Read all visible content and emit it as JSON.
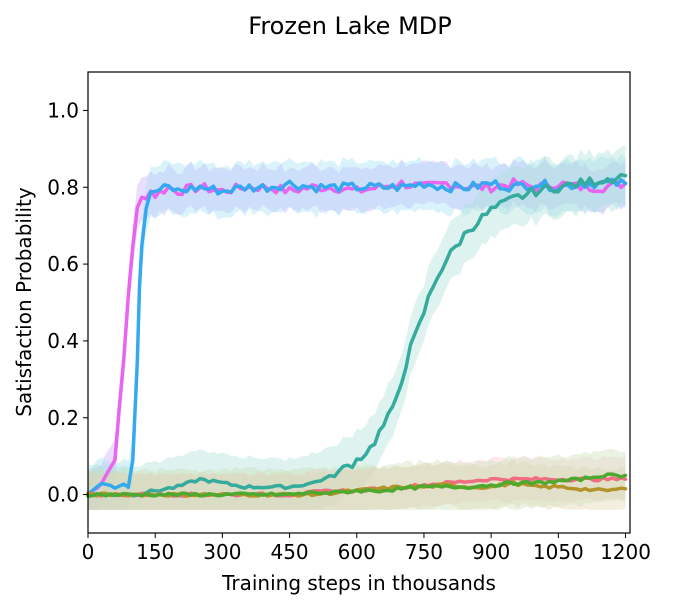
{
  "chart_data": {
    "type": "line",
    "title": "Frozen Lake MDP",
    "xlabel": "Training steps in thousands",
    "ylabel": "Satisfaction Probability",
    "xlim": [
      0,
      1210
    ],
    "ylim": [
      -0.1,
      1.1
    ],
    "xticks": [
      0,
      150,
      300,
      450,
      600,
      750,
      900,
      1050,
      1200
    ],
    "yticks": [
      0.0,
      0.2,
      0.4,
      0.6,
      0.8,
      1.0
    ],
    "ytick_labels": [
      "0.0",
      "0.2",
      "0.4",
      "0.6",
      "0.8",
      "1.0"
    ],
    "grid": false,
    "legend": "none",
    "series": [
      {
        "color": "#e964f0",
        "band_color": "#c9a8ff",
        "x": [
          0,
          30,
          50,
          60,
          70,
          80,
          90,
          100,
          110,
          120,
          130,
          140,
          150,
          180,
          200,
          250,
          300,
          350,
          400,
          450,
          500,
          550,
          600,
          650,
          700,
          750,
          800,
          850,
          900,
          950,
          1000,
          1050,
          1100,
          1150,
          1200
        ],
        "y": [
          0.0,
          0.03,
          0.07,
          0.1,
          0.22,
          0.35,
          0.52,
          0.65,
          0.74,
          0.77,
          0.78,
          0.79,
          0.78,
          0.8,
          0.79,
          0.8,
          0.79,
          0.8,
          0.8,
          0.79,
          0.8,
          0.8,
          0.79,
          0.8,
          0.81,
          0.8,
          0.81,
          0.8,
          0.8,
          0.81,
          0.8,
          0.81,
          0.8,
          0.8,
          0.81
        ],
        "band": 0.05
      },
      {
        "color": "#35a9ef",
        "band_color": "#9fe0f5",
        "x": [
          0,
          20,
          40,
          60,
          80,
          90,
          100,
          110,
          115,
          120,
          130,
          140,
          150,
          180,
          200,
          250,
          300,
          350,
          400,
          450,
          500,
          550,
          600,
          650,
          700,
          750,
          800,
          850,
          900,
          950,
          1000,
          1050,
          1100,
          1150,
          1200
        ],
        "y": [
          0.0,
          0.02,
          0.03,
          0.02,
          0.03,
          0.02,
          0.1,
          0.35,
          0.55,
          0.65,
          0.75,
          0.78,
          0.79,
          0.8,
          0.79,
          0.8,
          0.79,
          0.8,
          0.8,
          0.81,
          0.8,
          0.8,
          0.8,
          0.8,
          0.8,
          0.81,
          0.8,
          0.8,
          0.81,
          0.8,
          0.81,
          0.8,
          0.81,
          0.81,
          0.81
        ],
        "band": 0.06
      },
      {
        "color": "#35ab9d",
        "band_color": "#a7dfd6",
        "x": [
          0,
          100,
          150,
          200,
          250,
          300,
          350,
          400,
          450,
          500,
          550,
          600,
          630,
          650,
          680,
          700,
          720,
          740,
          760,
          780,
          800,
          830,
          850,
          880,
          900,
          950,
          1000,
          1050,
          1100,
          1150,
          1200
        ],
        "y": [
          0.0,
          0.0,
          0.01,
          0.02,
          0.04,
          0.03,
          0.02,
          0.02,
          0.02,
          0.03,
          0.05,
          0.09,
          0.12,
          0.16,
          0.22,
          0.3,
          0.38,
          0.44,
          0.51,
          0.57,
          0.61,
          0.66,
          0.69,
          0.72,
          0.74,
          0.77,
          0.79,
          0.8,
          0.81,
          0.82,
          0.83
        ],
        "band": 0.07
      },
      {
        "color": "#f06e82",
        "band_color": "#fbc6cf",
        "x": [
          0,
          100,
          200,
          300,
          400,
          450,
          500,
          550,
          600,
          650,
          700,
          750,
          800,
          850,
          900,
          950,
          1000,
          1050,
          1100,
          1150,
          1200
        ],
        "y": [
          0.0,
          0.0,
          0.0,
          0.0,
          0.0,
          0.0,
          0.005,
          0.01,
          0.01,
          0.015,
          0.02,
          0.025,
          0.03,
          0.035,
          0.04,
          0.04,
          0.04,
          0.04,
          0.04,
          0.04,
          0.04
        ],
        "band": 0.05
      },
      {
        "color": "#b5932b",
        "band_color": "#e3d3ad",
        "x": [
          0,
          100,
          200,
          300,
          400,
          450,
          500,
          550,
          600,
          650,
          700,
          750,
          800,
          850,
          900,
          950,
          1000,
          1050,
          1100,
          1150,
          1200
        ],
        "y": [
          0.0,
          0.0,
          0.0,
          0.0,
          0.0,
          0.0,
          0.0,
          0.005,
          0.01,
          0.015,
          0.02,
          0.02,
          0.025,
          0.02,
          0.02,
          0.03,
          0.02,
          0.02,
          0.015,
          0.01,
          0.015
        ],
        "band": 0.05
      },
      {
        "color": "#4ea92f",
        "band_color": "#c7e0b2",
        "x": [
          0,
          100,
          200,
          300,
          400,
          450,
          500,
          550,
          600,
          650,
          700,
          750,
          800,
          850,
          900,
          950,
          1000,
          1050,
          1100,
          1150,
          1200
        ],
        "y": [
          0.0,
          0.0,
          0.0,
          0.0,
          0.0,
          0.0,
          0.005,
          0.005,
          0.01,
          0.01,
          0.015,
          0.02,
          0.02,
          0.02,
          0.025,
          0.03,
          0.03,
          0.035,
          0.04,
          0.05,
          0.05
        ],
        "band": 0.06
      }
    ]
  }
}
